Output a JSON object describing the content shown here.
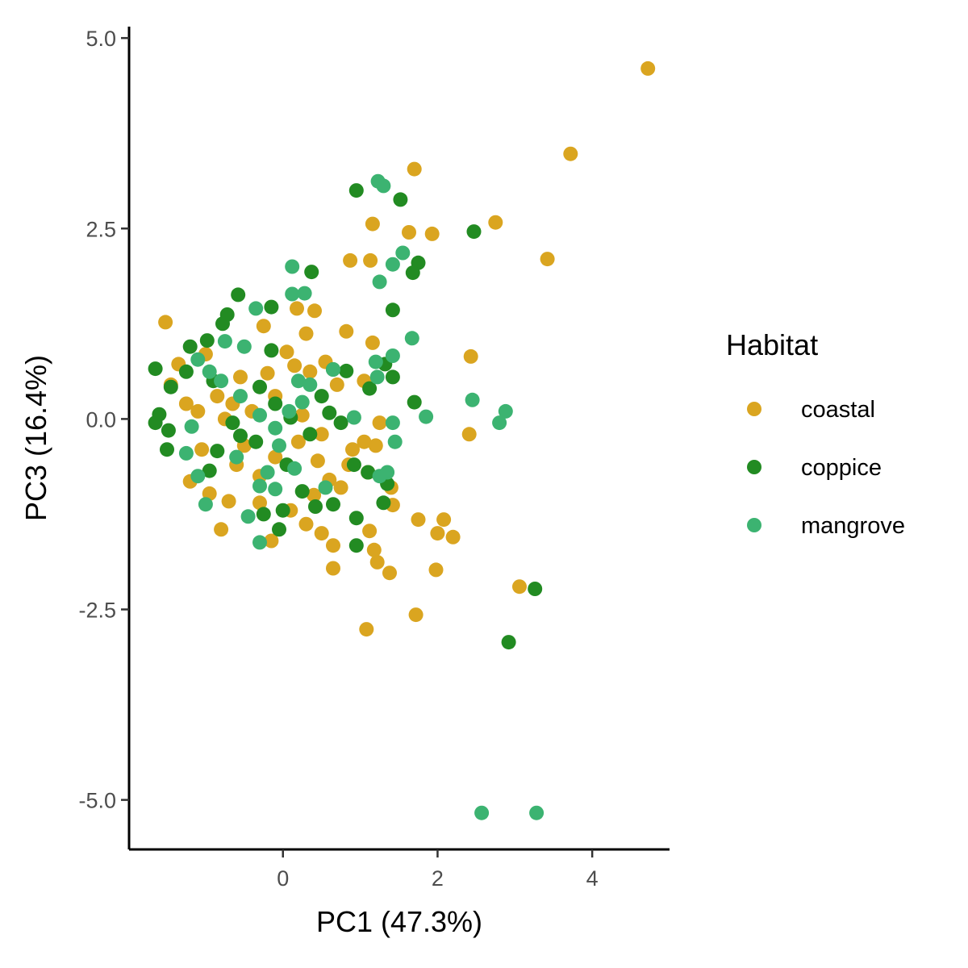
{
  "chart_data": {
    "type": "scatter",
    "title": "",
    "xlabel": "PC1 (47.3%)",
    "ylabel": "PC3 (16.4%)",
    "xlim": [
      -1.99,
      5.0
    ],
    "ylim": [
      -5.65,
      5.15
    ],
    "x_ticks": [
      0,
      2,
      4
    ],
    "x_tick_labels": [
      "0",
      "2",
      "4"
    ],
    "y_ticks": [
      5.0,
      2.5,
      0.0,
      -2.5,
      -5.0
    ],
    "y_tick_labels": [
      "5.0",
      "2.5",
      "0.0",
      "-2.5",
      "-5.0"
    ],
    "grid": false,
    "legend": {
      "title": "Habitat",
      "position": "right"
    },
    "series": [
      {
        "name": "coastal",
        "color": "#DAA520",
        "points": [
          [
            4.72,
            4.6
          ],
          [
            3.72,
            3.48
          ],
          [
            3.42,
            2.1
          ],
          [
            2.75,
            2.58
          ],
          [
            1.7,
            3.28
          ],
          [
            1.63,
            2.45
          ],
          [
            1.93,
            2.43
          ],
          [
            1.16,
            2.56
          ],
          [
            0.87,
            2.08
          ],
          [
            1.13,
            2.08
          ],
          [
            2.43,
            0.82
          ],
          [
            2.41,
            -0.2
          ],
          [
            1.16,
            1.0
          ],
          [
            0.82,
            1.15
          ],
          [
            0.41,
            1.42
          ],
          [
            0.18,
            1.45
          ],
          [
            -1.52,
            1.27
          ],
          [
            0.3,
            1.12
          ],
          [
            -0.25,
            1.22
          ],
          [
            0.55,
            0.75
          ],
          [
            1.05,
            0.5
          ],
          [
            1.25,
            -0.05
          ],
          [
            0.9,
            -0.4
          ],
          [
            1.2,
            -0.35
          ],
          [
            1.1,
            -0.7
          ],
          [
            1.4,
            -0.9
          ],
          [
            1.42,
            -1.13
          ],
          [
            1.75,
            -1.32
          ],
          [
            2.08,
            -1.32
          ],
          [
            2.0,
            -1.5
          ],
          [
            2.2,
            -1.55
          ],
          [
            1.12,
            -1.47
          ],
          [
            1.18,
            -1.72
          ],
          [
            1.22,
            -1.88
          ],
          [
            1.38,
            -2.02
          ],
          [
            1.98,
            -1.98
          ],
          [
            1.72,
            -2.57
          ],
          [
            1.08,
            -2.76
          ],
          [
            3.06,
            -2.2
          ],
          [
            0.65,
            -1.66
          ],
          [
            0.65,
            -1.96
          ],
          [
            -0.15,
            -1.6
          ],
          [
            0.3,
            -1.38
          ],
          [
            0.5,
            -1.5
          ],
          [
            -0.8,
            -1.45
          ],
          [
            -1.2,
            -0.82
          ],
          [
            -0.95,
            -0.98
          ],
          [
            -0.7,
            -1.08
          ],
          [
            -0.5,
            -0.35
          ],
          [
            -0.1,
            -0.5
          ],
          [
            0.2,
            -0.3
          ],
          [
            0.45,
            -0.55
          ],
          [
            0.6,
            -0.8
          ],
          [
            -0.3,
            -0.75
          ],
          [
            -0.6,
            -0.6
          ],
          [
            -1.05,
            -0.4
          ],
          [
            -1.25,
            0.2
          ],
          [
            -0.85,
            0.3
          ],
          [
            -0.55,
            0.55
          ],
          [
            -0.2,
            0.6
          ],
          [
            0.05,
            0.88
          ],
          [
            0.35,
            0.62
          ],
          [
            0.7,
            0.45
          ],
          [
            -1.0,
            0.85
          ],
          [
            -1.35,
            0.72
          ],
          [
            -1.45,
            0.45
          ],
          [
            -0.1,
            0.3
          ],
          [
            0.25,
            0.05
          ],
          [
            0.5,
            -0.2
          ],
          [
            -0.4,
            0.1
          ],
          [
            -0.75,
            0.0
          ],
          [
            -1.1,
            0.1
          ],
          [
            -0.3,
            -1.1
          ],
          [
            0.1,
            -1.2
          ],
          [
            0.4,
            -1.0
          ],
          [
            0.75,
            -0.9
          ],
          [
            0.85,
            -0.6
          ],
          [
            1.05,
            -0.3
          ],
          [
            0.15,
            0.7
          ],
          [
            -0.65,
            0.2
          ]
        ]
      },
      {
        "name": "coppice",
        "color": "#228B22",
        "points": [
          [
            0.95,
            3.0
          ],
          [
            1.52,
            2.88
          ],
          [
            2.47,
            2.46
          ],
          [
            1.75,
            2.05
          ],
          [
            1.68,
            1.92
          ],
          [
            0.37,
            1.93
          ],
          [
            1.42,
            1.43
          ],
          [
            -0.58,
            1.63
          ],
          [
            -0.72,
            1.37
          ],
          [
            -0.15,
            1.47
          ],
          [
            -0.98,
            1.03
          ],
          [
            -0.78,
            1.25
          ],
          [
            -1.65,
            0.66
          ],
          [
            -1.45,
            0.42
          ],
          [
            -1.25,
            0.62
          ],
          [
            -1.2,
            0.95
          ],
          [
            -1.6,
            0.06
          ],
          [
            -1.65,
            -0.05
          ],
          [
            -1.48,
            -0.15
          ],
          [
            -1.5,
            -0.4
          ],
          [
            -0.95,
            -0.68
          ],
          [
            -0.85,
            -0.42
          ],
          [
            -0.55,
            -0.22
          ],
          [
            -0.3,
            0.42
          ],
          [
            -0.1,
            0.2
          ],
          [
            0.1,
            0.02
          ],
          [
            0.35,
            -0.2
          ],
          [
            0.5,
            0.3
          ],
          [
            0.6,
            0.08
          ],
          [
            0.82,
            0.63
          ],
          [
            0.75,
            -0.05
          ],
          [
            0.92,
            -0.6
          ],
          [
            1.12,
            0.4
          ],
          [
            1.32,
            0.72
          ],
          [
            1.42,
            0.55
          ],
          [
            1.7,
            0.22
          ],
          [
            1.1,
            -0.7
          ],
          [
            1.35,
            -0.85
          ],
          [
            1.3,
            -1.1
          ],
          [
            0.95,
            -1.3
          ],
          [
            0.65,
            -1.12
          ],
          [
            0.42,
            -1.15
          ],
          [
            0.0,
            -1.2
          ],
          [
            -0.25,
            -1.25
          ],
          [
            -0.05,
            -1.45
          ],
          [
            0.95,
            -1.66
          ],
          [
            2.92,
            -2.93
          ],
          [
            3.26,
            -2.23
          ],
          [
            -0.35,
            -0.3
          ],
          [
            -0.65,
            -0.05
          ],
          [
            -0.9,
            0.5
          ],
          [
            0.05,
            -0.6
          ],
          [
            0.25,
            -0.95
          ],
          [
            -0.15,
            0.9
          ],
          [
            0.65,
            0.65
          ]
        ]
      },
      {
        "name": "mangrove",
        "color": "#3CB371",
        "points": [
          [
            1.23,
            3.12
          ],
          [
            1.3,
            3.06
          ],
          [
            1.55,
            2.18
          ],
          [
            1.42,
            2.03
          ],
          [
            1.25,
            1.8
          ],
          [
            0.12,
            2.0
          ],
          [
            0.12,
            1.64
          ],
          [
            0.28,
            1.65
          ],
          [
            -0.35,
            1.45
          ],
          [
            1.67,
            1.06
          ],
          [
            1.42,
            0.83
          ],
          [
            1.2,
            0.75
          ],
          [
            1.22,
            0.55
          ],
          [
            2.45,
            0.25
          ],
          [
            2.88,
            0.1
          ],
          [
            2.8,
            -0.05
          ],
          [
            1.85,
            0.03
          ],
          [
            1.42,
            -0.05
          ],
          [
            1.45,
            -0.3
          ],
          [
            1.35,
            -0.7
          ],
          [
            1.25,
            -0.75
          ],
          [
            0.65,
            0.65
          ],
          [
            0.2,
            0.5
          ],
          [
            0.08,
            0.1
          ],
          [
            -0.1,
            -0.12
          ],
          [
            -0.3,
            0.05
          ],
          [
            -0.55,
            0.3
          ],
          [
            -0.8,
            0.5
          ],
          [
            -1.1,
            0.78
          ],
          [
            -0.95,
            0.62
          ],
          [
            -1.18,
            -0.1
          ],
          [
            -1.25,
            -0.45
          ],
          [
            -1.1,
            -0.75
          ],
          [
            -0.6,
            -0.5
          ],
          [
            -0.3,
            -0.88
          ],
          [
            -0.1,
            -0.92
          ],
          [
            0.15,
            -0.65
          ],
          [
            0.55,
            -0.9
          ],
          [
            -0.45,
            -1.28
          ],
          [
            -1.0,
            -1.12
          ],
          [
            -0.3,
            -1.62
          ],
          [
            -0.2,
            -0.7
          ],
          [
            0.35,
            0.45
          ],
          [
            -0.75,
            1.02
          ],
          [
            -0.5,
            0.95
          ],
          [
            2.57,
            -5.17
          ],
          [
            3.28,
            -5.17
          ],
          [
            -0.05,
            -0.35
          ],
          [
            0.25,
            0.22
          ],
          [
            0.92,
            0.02
          ]
        ]
      }
    ]
  }
}
